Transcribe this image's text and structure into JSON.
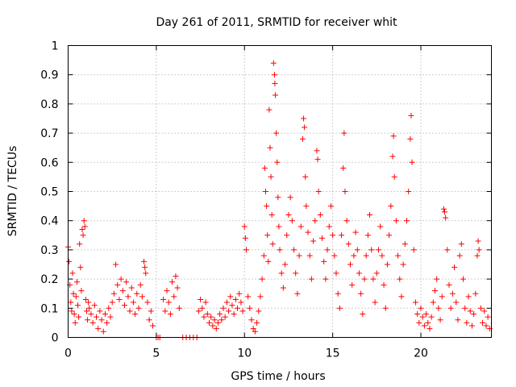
{
  "chart_data": {
    "type": "scatter",
    "title": "Day 261 of 2011, SRMTID for receiver whit",
    "xlabel": "GPS time / hours",
    "ylabel": "SRMTID / TECUs",
    "xlim": [
      0,
      24
    ],
    "ylim": [
      0,
      1
    ],
    "xticks": [
      "0",
      "5",
      "10",
      "15",
      "20"
    ],
    "xtick_values": [
      0,
      5,
      10,
      15,
      20
    ],
    "yticks": [
      "0",
      "0.1",
      "0.2",
      "0.3",
      "0.4",
      "0.5",
      "0.6",
      "0.7",
      "0.8",
      "0.9",
      "1"
    ],
    "ytick_values": [
      0,
      0.1,
      0.2,
      0.3,
      0.4,
      0.5,
      0.6,
      0.7,
      0.8,
      0.9,
      1.0
    ],
    "grid": true,
    "marker": "+",
    "color": "#ff0000",
    "series": [
      {
        "name": "SRMTID",
        "points": [
          [
            0.0,
            0.31
          ],
          [
            0.05,
            0.26
          ],
          [
            0.1,
            0.18
          ],
          [
            0.15,
            0.12
          ],
          [
            0.2,
            0.09
          ],
          [
            0.25,
            0.22
          ],
          [
            0.3,
            0.15
          ],
          [
            0.35,
            0.08
          ],
          [
            0.4,
            0.05
          ],
          [
            0.45,
            0.14
          ],
          [
            0.5,
            0.19
          ],
          [
            0.55,
            0.11
          ],
          [
            0.6,
            0.07
          ],
          [
            0.65,
            0.32
          ],
          [
            0.7,
            0.24
          ],
          [
            0.75,
            0.16
          ],
          [
            0.8,
            0.37
          ],
          [
            0.85,
            0.35
          ],
          [
            0.9,
            0.4
          ],
          [
            0.95,
            0.38
          ],
          [
            1.0,
            0.13
          ],
          [
            1.05,
            0.09
          ],
          [
            1.1,
            0.06
          ],
          [
            1.15,
            0.12
          ],
          [
            1.2,
            0.1
          ],
          [
            1.3,
            0.08
          ],
          [
            1.4,
            0.05
          ],
          [
            1.5,
            0.11
          ],
          [
            1.6,
            0.07
          ],
          [
            1.7,
            0.03
          ],
          [
            1.8,
            0.09
          ],
          [
            1.9,
            0.06
          ],
          [
            2.0,
            0.02
          ],
          [
            2.1,
            0.08
          ],
          [
            2.2,
            0.05
          ],
          [
            2.3,
            0.1
          ],
          [
            2.4,
            0.07
          ],
          [
            2.5,
            0.12
          ],
          [
            2.6,
            0.15
          ],
          [
            2.7,
            0.25
          ],
          [
            2.8,
            0.18
          ],
          [
            2.9,
            0.13
          ],
          [
            3.0,
            0.2
          ],
          [
            3.1,
            0.16
          ],
          [
            3.2,
            0.11
          ],
          [
            3.3,
            0.19
          ],
          [
            3.4,
            0.14
          ],
          [
            3.5,
            0.09
          ],
          [
            3.6,
            0.17
          ],
          [
            3.7,
            0.12
          ],
          [
            3.8,
            0.08
          ],
          [
            3.9,
            0.15
          ],
          [
            4.0,
            0.1
          ],
          [
            4.1,
            0.18
          ],
          [
            4.2,
            0.14
          ],
          [
            4.3,
            0.26
          ],
          [
            4.35,
            0.24
          ],
          [
            4.4,
            0.22
          ],
          [
            4.5,
            0.12
          ],
          [
            4.6,
            0.06
          ],
          [
            4.7,
            0.09
          ],
          [
            4.8,
            0.04
          ],
          [
            5.0,
            0.0
          ],
          [
            5.1,
            0.0
          ],
          [
            5.2,
            0.0
          ],
          [
            5.4,
            0.13
          ],
          [
            5.5,
            0.09
          ],
          [
            5.6,
            0.16
          ],
          [
            5.7,
            0.12
          ],
          [
            5.8,
            0.08
          ],
          [
            5.9,
            0.19
          ],
          [
            6.0,
            0.14
          ],
          [
            6.1,
            0.21
          ],
          [
            6.2,
            0.17
          ],
          [
            6.3,
            0.1
          ],
          [
            6.5,
            0.0
          ],
          [
            6.7,
            0.0
          ],
          [
            6.9,
            0.0
          ],
          [
            7.1,
            0.0
          ],
          [
            7.3,
            0.0
          ],
          [
            7.4,
            0.09
          ],
          [
            7.5,
            0.13
          ],
          [
            7.6,
            0.1
          ],
          [
            7.7,
            0.07
          ],
          [
            7.8,
            0.12
          ],
          [
            7.9,
            0.08
          ],
          [
            8.0,
            0.05
          ],
          [
            8.1,
            0.07
          ],
          [
            8.2,
            0.04
          ],
          [
            8.3,
            0.06
          ],
          [
            8.4,
            0.03
          ],
          [
            8.5,
            0.05
          ],
          [
            8.6,
            0.08
          ],
          [
            8.7,
            0.06
          ],
          [
            8.8,
            0.1
          ],
          [
            8.9,
            0.07
          ],
          [
            9.0,
            0.12
          ],
          [
            9.1,
            0.09
          ],
          [
            9.2,
            0.14
          ],
          [
            9.3,
            0.11
          ],
          [
            9.4,
            0.08
          ],
          [
            9.5,
            0.13
          ],
          [
            9.6,
            0.1
          ],
          [
            9.7,
            0.15
          ],
          [
            9.8,
            0.12
          ],
          [
            9.9,
            0.09
          ],
          [
            10.0,
            0.38
          ],
          [
            10.05,
            0.34
          ],
          [
            10.1,
            0.3
          ],
          [
            10.2,
            0.14
          ],
          [
            10.3,
            0.1
          ],
          [
            10.4,
            0.06
          ],
          [
            10.5,
            0.03
          ],
          [
            10.6,
            0.02
          ],
          [
            10.7,
            0.05
          ],
          [
            10.8,
            0.09
          ],
          [
            10.9,
            0.14
          ],
          [
            11.0,
            0.2
          ],
          [
            11.1,
            0.28
          ],
          [
            11.15,
            0.58
          ],
          [
            11.2,
            0.5
          ],
          [
            11.25,
            0.45
          ],
          [
            11.3,
            0.35
          ],
          [
            11.35,
            0.26
          ],
          [
            11.4,
            0.78
          ],
          [
            11.45,
            0.65
          ],
          [
            11.5,
            0.55
          ],
          [
            11.55,
            0.42
          ],
          [
            11.6,
            0.32
          ],
          [
            11.65,
            0.94
          ],
          [
            11.7,
            0.9
          ],
          [
            11.72,
            0.87
          ],
          [
            11.75,
            0.83
          ],
          [
            11.8,
            0.7
          ],
          [
            11.85,
            0.6
          ],
          [
            11.9,
            0.48
          ],
          [
            11.95,
            0.38
          ],
          [
            12.0,
            0.3
          ],
          [
            12.1,
            0.22
          ],
          [
            12.2,
            0.17
          ],
          [
            12.3,
            0.25
          ],
          [
            12.4,
            0.35
          ],
          [
            12.5,
            0.42
          ],
          [
            12.6,
            0.48
          ],
          [
            12.7,
            0.4
          ],
          [
            12.8,
            0.3
          ],
          [
            12.9,
            0.22
          ],
          [
            13.0,
            0.15
          ],
          [
            13.1,
            0.28
          ],
          [
            13.2,
            0.38
          ],
          [
            13.3,
            0.68
          ],
          [
            13.35,
            0.75
          ],
          [
            13.4,
            0.72
          ],
          [
            13.45,
            0.55
          ],
          [
            13.5,
            0.45
          ],
          [
            13.6,
            0.36
          ],
          [
            13.7,
            0.28
          ],
          [
            13.8,
            0.2
          ],
          [
            13.9,
            0.33
          ],
          [
            14.0,
            0.4
          ],
          [
            14.1,
            0.64
          ],
          [
            14.15,
            0.61
          ],
          [
            14.2,
            0.5
          ],
          [
            14.3,
            0.42
          ],
          [
            14.4,
            0.34
          ],
          [
            14.5,
            0.26
          ],
          [
            14.6,
            0.2
          ],
          [
            14.7,
            0.3
          ],
          [
            14.8,
            0.38
          ],
          [
            14.9,
            0.45
          ],
          [
            15.0,
            0.35
          ],
          [
            15.1,
            0.28
          ],
          [
            15.2,
            0.22
          ],
          [
            15.3,
            0.15
          ],
          [
            15.4,
            0.1
          ],
          [
            15.5,
            0.35
          ],
          [
            15.6,
            0.58
          ],
          [
            15.65,
            0.7
          ],
          [
            15.7,
            0.5
          ],
          [
            15.8,
            0.4
          ],
          [
            15.9,
            0.32
          ],
          [
            16.0,
            0.25
          ],
          [
            16.1,
            0.18
          ],
          [
            16.2,
            0.28
          ],
          [
            16.3,
            0.36
          ],
          [
            16.4,
            0.3
          ],
          [
            16.5,
            0.22
          ],
          [
            16.6,
            0.15
          ],
          [
            16.7,
            0.08
          ],
          [
            16.8,
            0.2
          ],
          [
            16.9,
            0.28
          ],
          [
            17.0,
            0.35
          ],
          [
            17.1,
            0.42
          ],
          [
            17.2,
            0.3
          ],
          [
            17.3,
            0.2
          ],
          [
            17.4,
            0.12
          ],
          [
            17.5,
            0.22
          ],
          [
            17.6,
            0.3
          ],
          [
            17.7,
            0.38
          ],
          [
            17.8,
            0.28
          ],
          [
            17.9,
            0.18
          ],
          [
            18.0,
            0.1
          ],
          [
            18.1,
            0.25
          ],
          [
            18.2,
            0.35
          ],
          [
            18.3,
            0.45
          ],
          [
            18.4,
            0.62
          ],
          [
            18.45,
            0.69
          ],
          [
            18.5,
            0.55
          ],
          [
            18.6,
            0.4
          ],
          [
            18.7,
            0.28
          ],
          [
            18.8,
            0.2
          ],
          [
            18.9,
            0.14
          ],
          [
            19.0,
            0.25
          ],
          [
            19.1,
            0.32
          ],
          [
            19.2,
            0.4
          ],
          [
            19.3,
            0.5
          ],
          [
            19.4,
            0.68
          ],
          [
            19.45,
            0.76
          ],
          [
            19.5,
            0.6
          ],
          [
            19.6,
            0.3
          ],
          [
            19.7,
            0.12
          ],
          [
            19.8,
            0.08
          ],
          [
            19.9,
            0.05
          ],
          [
            20.0,
            0.1
          ],
          [
            20.1,
            0.07
          ],
          [
            20.2,
            0.04
          ],
          [
            20.3,
            0.08
          ],
          [
            20.4,
            0.05
          ],
          [
            20.5,
            0.03
          ],
          [
            20.6,
            0.07
          ],
          [
            20.7,
            0.12
          ],
          [
            20.8,
            0.16
          ],
          [
            20.9,
            0.2
          ],
          [
            21.0,
            0.1
          ],
          [
            21.1,
            0.06
          ],
          [
            21.2,
            0.14
          ],
          [
            21.3,
            0.44
          ],
          [
            21.35,
            0.43
          ],
          [
            21.4,
            0.41
          ],
          [
            21.5,
            0.3
          ],
          [
            21.6,
            0.18
          ],
          [
            21.7,
            0.1
          ],
          [
            21.8,
            0.15
          ],
          [
            21.9,
            0.24
          ],
          [
            22.0,
            0.12
          ],
          [
            22.1,
            0.06
          ],
          [
            22.2,
            0.28
          ],
          [
            22.3,
            0.32
          ],
          [
            22.4,
            0.2
          ],
          [
            22.5,
            0.1
          ],
          [
            22.6,
            0.05
          ],
          [
            22.7,
            0.14
          ],
          [
            22.8,
            0.09
          ],
          [
            22.9,
            0.04
          ],
          [
            23.0,
            0.08
          ],
          [
            23.1,
            0.15
          ],
          [
            23.2,
            0.28
          ],
          [
            23.25,
            0.33
          ],
          [
            23.3,
            0.3
          ],
          [
            23.4,
            0.1
          ],
          [
            23.5,
            0.05
          ],
          [
            23.6,
            0.09
          ],
          [
            23.7,
            0.04
          ],
          [
            23.8,
            0.07
          ],
          [
            23.9,
            0.03
          ]
        ]
      }
    ]
  }
}
